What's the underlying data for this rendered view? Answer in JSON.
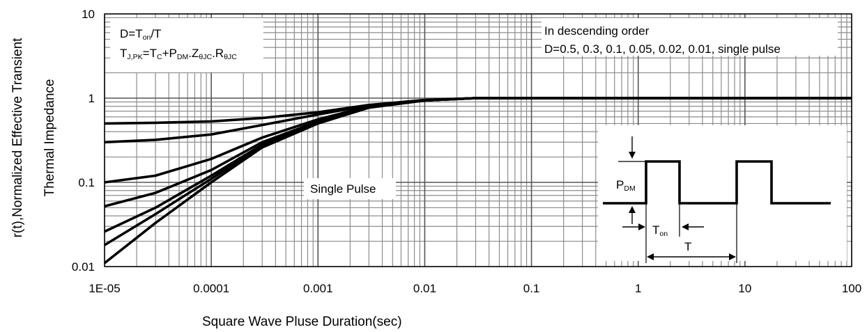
{
  "chart_data": {
    "type": "line",
    "x_scale": "log",
    "y_scale": "log",
    "xlim": [
      1e-05,
      100
    ],
    "ylim": [
      0.01,
      10
    ],
    "x_ticks": [
      "1E-05",
      "0.0001",
      "0.001",
      "0.01",
      "0.1",
      "1",
      "10",
      "100"
    ],
    "y_ticks": [
      "0.01",
      "0.1",
      "1",
      "10"
    ],
    "xlabel": "Square Wave Pluse Duration(sec)",
    "ylabel_line1": "r(t),Normalized Effective Transient",
    "ylabel_line2": "Thermal Impedance",
    "grid": true,
    "annotations": {
      "duty_formula": "D=Ton/T",
      "tj_formula": "TJ,PK=TC+PDM.ZθJC.RθJC",
      "order_line1": "In descending order",
      "order_line2": "D=0.5, 0.3, 0.1, 0.05, 0.02, 0.01, single pulse",
      "single_pulse_label": "Single Pulse",
      "inset_pdm": "PDM",
      "inset_ton": "Ton",
      "inset_t": "T"
    },
    "series": [
      {
        "name": "D=0.5",
        "x": [
          1e-05,
          3e-05,
          0.0001,
          0.0003,
          0.001,
          0.003,
          0.01,
          0.03,
          100
        ],
        "y": [
          0.5,
          0.51,
          0.53,
          0.58,
          0.68,
          0.83,
          0.95,
          1.0,
          1.0
        ]
      },
      {
        "name": "D=0.3",
        "x": [
          1e-05,
          3e-05,
          0.0001,
          0.0003,
          0.001,
          0.003,
          0.01,
          0.03,
          100
        ],
        "y": [
          0.3,
          0.32,
          0.37,
          0.48,
          0.64,
          0.82,
          0.95,
          1.0,
          1.0
        ]
      },
      {
        "name": "D=0.1",
        "x": [
          1e-05,
          3e-05,
          0.0001,
          0.0003,
          0.001,
          0.003,
          0.01,
          0.03,
          100
        ],
        "y": [
          0.1,
          0.12,
          0.19,
          0.34,
          0.56,
          0.8,
          0.94,
          1.0,
          1.0
        ]
      },
      {
        "name": "D=0.05",
        "x": [
          1e-05,
          3e-05,
          0.0001,
          0.0003,
          0.001,
          0.003,
          0.01,
          0.03,
          100
        ],
        "y": [
          0.052,
          0.075,
          0.14,
          0.3,
          0.53,
          0.79,
          0.94,
          1.0,
          1.0
        ]
      },
      {
        "name": "D=0.02",
        "x": [
          1e-05,
          3e-05,
          0.0001,
          0.0003,
          0.001,
          0.003,
          0.01,
          0.03,
          100
        ],
        "y": [
          0.026,
          0.05,
          0.12,
          0.28,
          0.52,
          0.78,
          0.94,
          1.0,
          1.0
        ]
      },
      {
        "name": "D=0.01",
        "x": [
          1e-05,
          3e-05,
          0.0001,
          0.0003,
          0.001,
          0.003,
          0.01,
          0.03,
          100
        ],
        "y": [
          0.018,
          0.042,
          0.11,
          0.27,
          0.51,
          0.78,
          0.94,
          1.0,
          1.0
        ]
      },
      {
        "name": "single pulse",
        "x": [
          1e-05,
          3e-05,
          0.0001,
          0.0003,
          0.001,
          0.003,
          0.01,
          0.03,
          100
        ],
        "y": [
          0.011,
          0.033,
          0.1,
          0.26,
          0.5,
          0.77,
          0.94,
          1.0,
          1.0
        ]
      }
    ]
  }
}
